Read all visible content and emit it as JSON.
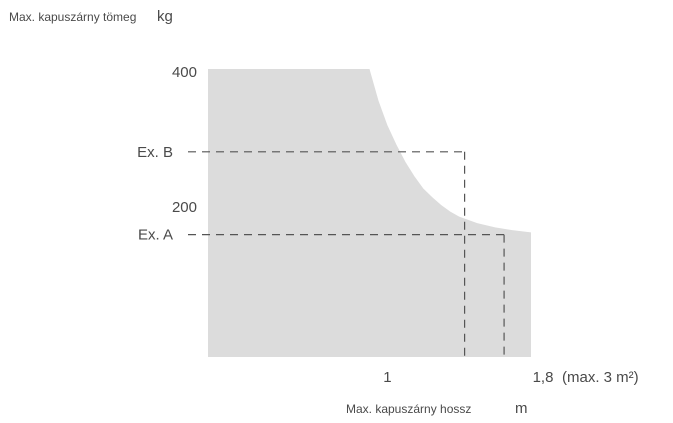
{
  "chart_data": {
    "type": "area",
    "ylabel": {
      "text": "Max. kapuszárny tömeg",
      "unit": "kg"
    },
    "xlabel": {
      "text": "Max. kapuszárny hossz",
      "unit": "m"
    },
    "xlim": [
      0,
      1.8
    ],
    "ylim": [
      0,
      400
    ],
    "x_ticks": [
      {
        "value": 1,
        "label": "1"
      },
      {
        "value": 1.8,
        "label": "1,8"
      }
    ],
    "x_note": "(max. 3 m²)",
    "y_ticks": [
      {
        "value": 400,
        "label": "400"
      },
      {
        "value": 200,
        "label": "200"
      }
    ],
    "region": {
      "color": "#dcdcdc",
      "boundary": [
        {
          "x": 0,
          "y": 400
        },
        {
          "x": 0.9,
          "y": 400
        },
        {
          "x": 0.95,
          "y": 356
        },
        {
          "x": 1.0,
          "y": 322
        },
        {
          "x": 1.05,
          "y": 295
        },
        {
          "x": 1.1,
          "y": 271
        },
        {
          "x": 1.15,
          "y": 251
        },
        {
          "x": 1.2,
          "y": 234
        },
        {
          "x": 1.25,
          "y": 222
        },
        {
          "x": 1.3,
          "y": 211
        },
        {
          "x": 1.35,
          "y": 202
        },
        {
          "x": 1.4,
          "y": 195
        },
        {
          "x": 1.5,
          "y": 186
        },
        {
          "x": 1.6,
          "y": 180
        },
        {
          "x": 1.7,
          "y": 176
        },
        {
          "x": 1.8,
          "y": 173
        },
        {
          "x": 1.8,
          "y": 0
        },
        {
          "x": 0,
          "y": 0
        }
      ]
    },
    "annotations": [
      {
        "label": "Ex. B",
        "y": 285,
        "x": 1.43
      },
      {
        "label": "Ex. A",
        "y": 170,
        "x": 1.65
      }
    ]
  }
}
